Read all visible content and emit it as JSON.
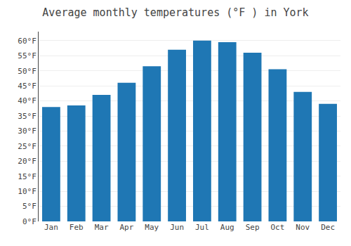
{
  "chart_data": {
    "type": "bar",
    "title": "Average monthly temperatures (°F ) in York",
    "categories": [
      "Jan",
      "Feb",
      "Mar",
      "Apr",
      "May",
      "Jun",
      "Jul",
      "Aug",
      "Sep",
      "Oct",
      "Nov",
      "Dec"
    ],
    "values": [
      38,
      38.5,
      42,
      46,
      51.5,
      57,
      60,
      59.5,
      56,
      50.5,
      43,
      39
    ],
    "ylim": [
      0,
      63
    ],
    "yticks": [
      {
        "value": 0,
        "label": "0°F"
      },
      {
        "value": 5,
        "label": "5°F"
      },
      {
        "value": 10,
        "label": "10°F"
      },
      {
        "value": 15,
        "label": "15°F"
      },
      {
        "value": 20,
        "label": "20°F"
      },
      {
        "value": 25,
        "label": "25°F"
      },
      {
        "value": 30,
        "label": "30°F"
      },
      {
        "value": 35,
        "label": "35°F"
      },
      {
        "value": 40,
        "label": "40°F"
      },
      {
        "value": 45,
        "label": "45°F"
      },
      {
        "value": 50,
        "label": "50°F"
      },
      {
        "value": 55,
        "label": "55°F"
      },
      {
        "value": 60,
        "label": "60°F"
      }
    ],
    "grid": true
  }
}
